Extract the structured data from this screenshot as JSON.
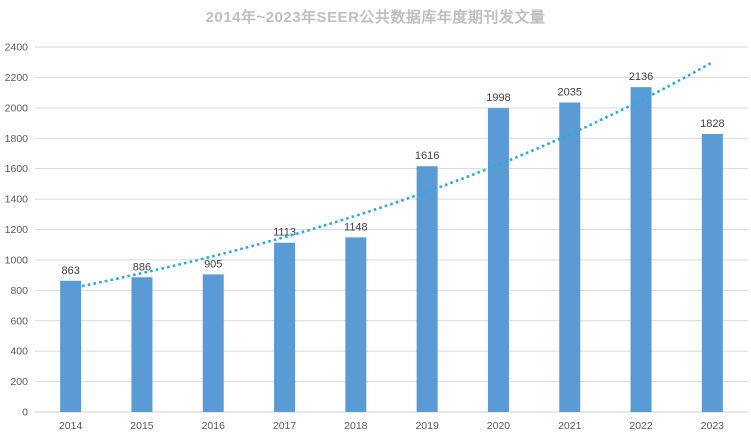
{
  "chart_data": {
    "type": "bar",
    "title": "2014年~2023年SEER公共数据库年度期刊发文量",
    "categories": [
      "2014",
      "2015",
      "2016",
      "2017",
      "2018",
      "2019",
      "2020",
      "2021",
      "2022",
      "2023"
    ],
    "values": [
      863,
      886,
      905,
      1113,
      1148,
      1616,
      1998,
      2035,
      2136,
      1828
    ],
    "data_labels": [
      "863",
      "886",
      "905",
      "1113",
      "1148",
      "1616",
      "1998",
      "2035",
      "2136",
      "1828"
    ],
    "trendline": {
      "type": "exponential",
      "style": "dotted",
      "values": [
        813,
        913,
        1025,
        1150,
        1291,
        1449,
        1627,
        1826,
        2049,
        2300
      ]
    },
    "ylim": [
      0,
      2400
    ],
    "yticks": [
      0,
      200,
      400,
      600,
      800,
      1000,
      1200,
      1400,
      1600,
      1800,
      2000,
      2200,
      2400
    ],
    "grid": true,
    "legend_position": "none",
    "xlabel": "",
    "ylabel": "",
    "colors": {
      "bar": "#5B9BD5",
      "trend": "#29ABE2",
      "gridline": "#D9D9D9",
      "axis_line": "#D0D0D0",
      "title_text": "#BFBFBF",
      "tick_text": "#595959",
      "label_text": "#404040"
    }
  }
}
